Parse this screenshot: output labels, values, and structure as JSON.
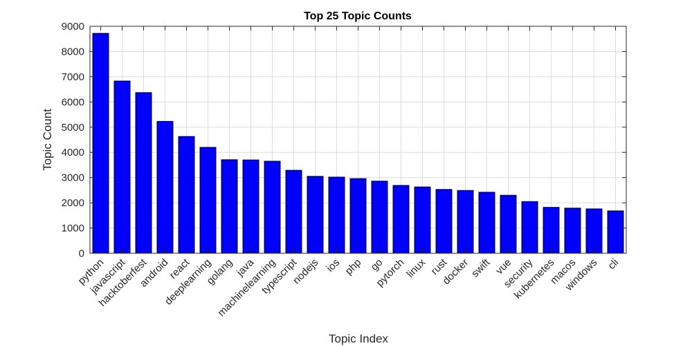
{
  "chart_data": {
    "type": "bar",
    "title": "Top 25 Topic Counts",
    "xlabel": "Topic Index",
    "ylabel": "Topic Count",
    "categories": [
      "python",
      "javascript",
      "hacktoberfest",
      "android",
      "react",
      "deeplearning",
      "golang",
      "java",
      "machinelearning",
      "typescript",
      "nodejs",
      "ios",
      "php",
      "go",
      "pytorch",
      "linux",
      "rust",
      "docker",
      "swift",
      "vue",
      "security",
      "kubernetes",
      "macos",
      "windows",
      "cli"
    ],
    "values": [
      8720,
      6830,
      6370,
      5230,
      4630,
      4200,
      3710,
      3700,
      3650,
      3290,
      3050,
      3020,
      2960,
      2860,
      2690,
      2630,
      2530,
      2490,
      2420,
      2300,
      2050,
      1820,
      1790,
      1760,
      1680
    ],
    "ylim": [
      0,
      9000
    ],
    "yticks": [
      0,
      1000,
      2000,
      3000,
      4000,
      5000,
      6000,
      7000,
      8000,
      9000
    ],
    "grid": true,
    "bar_color": "#0000ff",
    "bar_edge_color": "#000000"
  }
}
